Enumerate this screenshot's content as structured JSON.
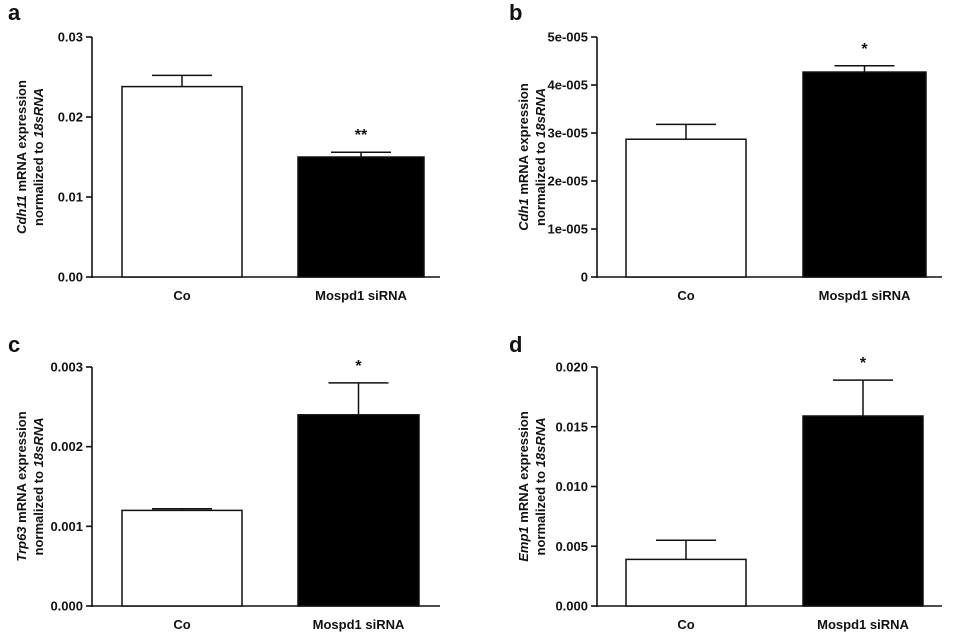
{
  "chart_data": [
    {
      "type": "bar",
      "panel": "a",
      "categories": [
        "Co",
        "Mospd1 siRNA"
      ],
      "values": [
        0.0238,
        0.015
      ],
      "errors": [
        0.0014,
        0.0006
      ],
      "bar_colors": [
        "#ffffff",
        "#000000"
      ],
      "significance": [
        "",
        "**"
      ],
      "ylabel_gene": "Cdh11",
      "ylabel_line1_rest": " mRNA  expression",
      "ylabel_line2": "normalized  to ",
      "ylabel_ref": "18sRNA",
      "ylim": [
        0,
        0.03
      ],
      "yticks": [
        0,
        0.01,
        0.02,
        0.03
      ],
      "ytick_labels": [
        "0.00",
        "0.01",
        "0.02",
        "0.03"
      ]
    },
    {
      "type": "bar",
      "panel": "b",
      "categories": [
        "Co",
        "Mospd1 siRNA"
      ],
      "values": [
        2.87e-05,
        4.27e-05
      ],
      "errors": [
        3.1e-06,
        1.3e-06
      ],
      "bar_colors": [
        "#ffffff",
        "#000000"
      ],
      "significance": [
        "",
        "*"
      ],
      "ylabel_gene": "Cdh1",
      "ylabel_line1_rest": " mRNA  expression",
      "ylabel_line2": "normalized  to ",
      "ylabel_ref": "18sRNA",
      "ylim": [
        0,
        5e-05
      ],
      "yticks": [
        0,
        1e-05,
        2e-05,
        3e-05,
        4e-05,
        5e-05
      ],
      "ytick_labels": [
        "0",
        "1e-005",
        "2e-005",
        "3e-005",
        "4e-005",
        "5e-005"
      ]
    },
    {
      "type": "bar",
      "panel": "c",
      "categories": [
        "Co",
        "Mospd1 siRNA"
      ],
      "values": [
        0.0012,
        0.0024
      ],
      "errors": [
        2e-05,
        0.0004
      ],
      "bar_colors": [
        "#ffffff",
        "#000000"
      ],
      "significance": [
        "",
        "*"
      ],
      "ylabel_gene": "Trp63",
      "ylabel_line1_rest": " mRNA  expression",
      "ylabel_line2": "normalized  to ",
      "ylabel_ref": "18sRNA",
      "ylim": [
        0,
        0.003
      ],
      "yticks": [
        0,
        0.001,
        0.002,
        0.003
      ],
      "ytick_labels": [
        "0.000",
        "0.001",
        "0.002",
        "0.003"
      ]
    },
    {
      "type": "bar",
      "panel": "d",
      "categories": [
        "Co",
        "Mospd1 siRNA"
      ],
      "values": [
        0.0039,
        0.0159
      ],
      "errors": [
        0.0016,
        0.003
      ],
      "bar_colors": [
        "#ffffff",
        "#000000"
      ],
      "significance": [
        "",
        "*"
      ],
      "ylabel_gene": "Emp1",
      "ylabel_line1_rest": " mRNA  expression",
      "ylabel_line2": "normalized  to ",
      "ylabel_ref": "18sRNA",
      "ylim": [
        0,
        0.02
      ],
      "yticks": [
        0,
        0.005,
        0.01,
        0.015,
        0.02
      ],
      "ytick_labels": [
        "0.000",
        "0.005",
        "0.010",
        "0.015",
        "0.020"
      ]
    }
  ]
}
